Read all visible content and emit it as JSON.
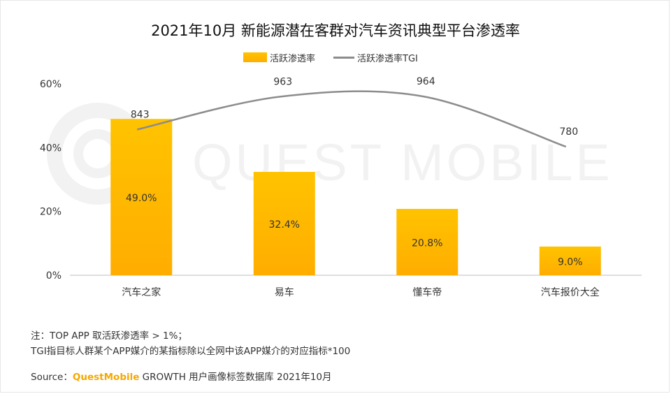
{
  "title": "2021年10月 新能源潜在客群对汽车资讯典型平台渗透率",
  "legend": {
    "bar_label": "活跃渗透率",
    "line_label": "活跃渗透率TGI"
  },
  "watermark": "QUEST MOBILE",
  "notes": [
    "注：TOP APP 取活跃渗透率  > 1%；",
    "TGI指目标人群某个APP媒介的某指标除以全网中该APP媒介的对应指标*100"
  ],
  "source": {
    "prefix": "Source：",
    "brand": "QuestMobile",
    "suffix": " GROWTH 用户画像标签数据库 2021年10月"
  },
  "colors": {
    "bar_top": "#ffc300",
    "bar_bottom": "#ffad00",
    "line": "#8c8c8c",
    "brand": "#f5a800"
  },
  "chart_data": {
    "type": "bar",
    "categories": [
      "汽车之家",
      "易车",
      "懂车帝",
      "汽车报价大全"
    ],
    "series": [
      {
        "name": "活跃渗透率",
        "values": [
          49.0,
          32.4,
          20.8,
          9.0
        ],
        "labels": [
          "49.0%",
          "32.4%",
          "20.8%",
          "9.0%"
        ]
      },
      {
        "name": "活跃渗透率TGI",
        "type": "line",
        "values": [
          843,
          963,
          964,
          780
        ],
        "labels": [
          "843",
          "963",
          "964",
          "780"
        ]
      }
    ],
    "yticks": [
      "0%",
      "20%",
      "40%",
      "60%"
    ],
    "ylim": [
      0,
      60
    ],
    "grid": false,
    "legend_position": "top-center"
  }
}
